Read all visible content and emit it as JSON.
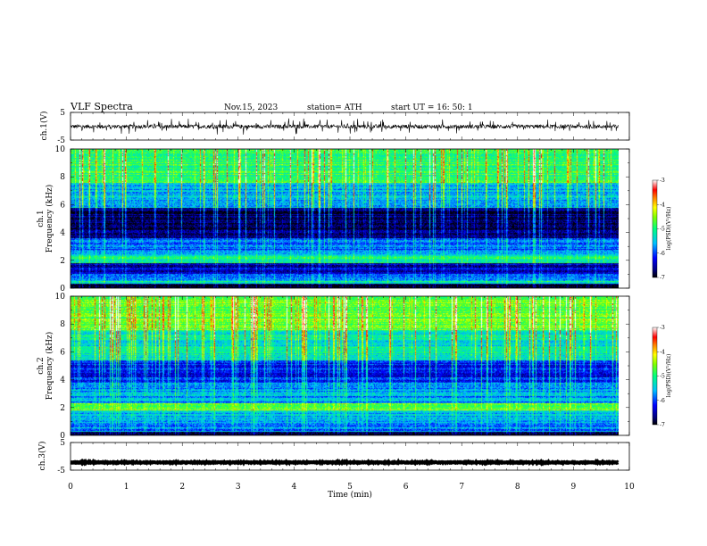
{
  "header": {
    "title": "VLF  Spectra",
    "date": "Nov.15, 2023",
    "station": "station= ATH",
    "start": "start  UT  =    16: 50: 1"
  },
  "chart_data": [
    {
      "type": "line",
      "name": "ch1-waveform",
      "ylabel": "ch.1(V)",
      "ylim": [
        -5,
        5
      ],
      "yticks": [
        "5",
        "-5"
      ],
      "xlim": [
        0,
        10
      ],
      "trace": {
        "mean": -0.1,
        "noise_amplitude": 0.7,
        "spike_amplitude": 2.4,
        "end_min": 9.8,
        "color": "#000000"
      }
    },
    {
      "type": "heatmap",
      "name": "ch1-spectrogram",
      "ylabel": "ch.1\nFrequency  (kHz)",
      "ylim": [
        0,
        10
      ],
      "yticks": [
        "10",
        "8",
        "6",
        "4",
        "2",
        "0"
      ],
      "xlim": [
        0,
        9.8
      ],
      "z_range": [
        -7,
        -3
      ],
      "colorbar": {
        "label": "log(PSD)(V²/Hz)",
        "ticks": [
          "-3",
          "-4",
          "-5",
          "-6",
          "-7"
        ]
      },
      "bands_khz_log_psd": [
        {
          "f": [
            0.0,
            0.3
          ],
          "v": -6.9
        },
        {
          "f": [
            0.3,
            0.5
          ],
          "v": -5.3
        },
        {
          "f": [
            0.5,
            1.0
          ],
          "v": -5.7
        },
        {
          "f": [
            1.0,
            1.8
          ],
          "v": -6.4
        },
        {
          "f": [
            1.8,
            2.4
          ],
          "v": -5.2
        },
        {
          "f": [
            2.4,
            3.6
          ],
          "v": -5.9
        },
        {
          "f": [
            3.6,
            5.8
          ],
          "v": -6.8
        },
        {
          "f": [
            5.8,
            7.6
          ],
          "v": -5.6
        },
        {
          "f": [
            7.6,
            10.0
          ],
          "v": -4.9
        }
      ],
      "spike_density": 0.22
    },
    {
      "type": "heatmap",
      "name": "ch2-spectrogram",
      "ylabel": "ch.2\nFrequency  (kHz)",
      "ylim": [
        0,
        10
      ],
      "yticks": [
        "10",
        "8",
        "6",
        "4",
        "2",
        "0"
      ],
      "xlim": [
        0,
        9.8
      ],
      "z_range": [
        -7,
        -3
      ],
      "colorbar": {
        "label": "log(PSD)(V²/Hz)",
        "ticks": [
          "-3",
          "-4",
          "-5",
          "-6",
          "-7"
        ]
      },
      "bands_khz_log_psd": [
        {
          "f": [
            0.0,
            0.2
          ],
          "v": -6.9
        },
        {
          "f": [
            0.2,
            1.0
          ],
          "v": -5.8
        },
        {
          "f": [
            1.0,
            1.8
          ],
          "v": -5.5
        },
        {
          "f": [
            1.8,
            2.3
          ],
          "v": -4.6
        },
        {
          "f": [
            2.3,
            3.8
          ],
          "v": -5.7
        },
        {
          "f": [
            3.8,
            5.4
          ],
          "v": -6.2
        },
        {
          "f": [
            5.4,
            7.6
          ],
          "v": -5.3
        },
        {
          "f": [
            7.6,
            10.0
          ],
          "v": -4.7
        }
      ],
      "spike_density": 0.28
    },
    {
      "type": "line",
      "name": "ch3-waveform",
      "ylabel": "ch.3(V)",
      "ylim": [
        -5,
        5
      ],
      "yticks": [
        "5",
        "-5"
      ],
      "xlim": [
        0,
        10
      ],
      "trace": {
        "mean": -2.2,
        "noise_amplitude": 0.15,
        "spike_amplitude": 0,
        "end_min": 9.8,
        "color": "#000000"
      }
    }
  ],
  "xaxis": {
    "xlabel": "Time  (min)",
    "xlim": [
      0,
      10
    ],
    "ticks": [
      "0",
      "1",
      "2",
      "3",
      "4",
      "5",
      "6",
      "7",
      "8",
      "9",
      "10"
    ]
  }
}
